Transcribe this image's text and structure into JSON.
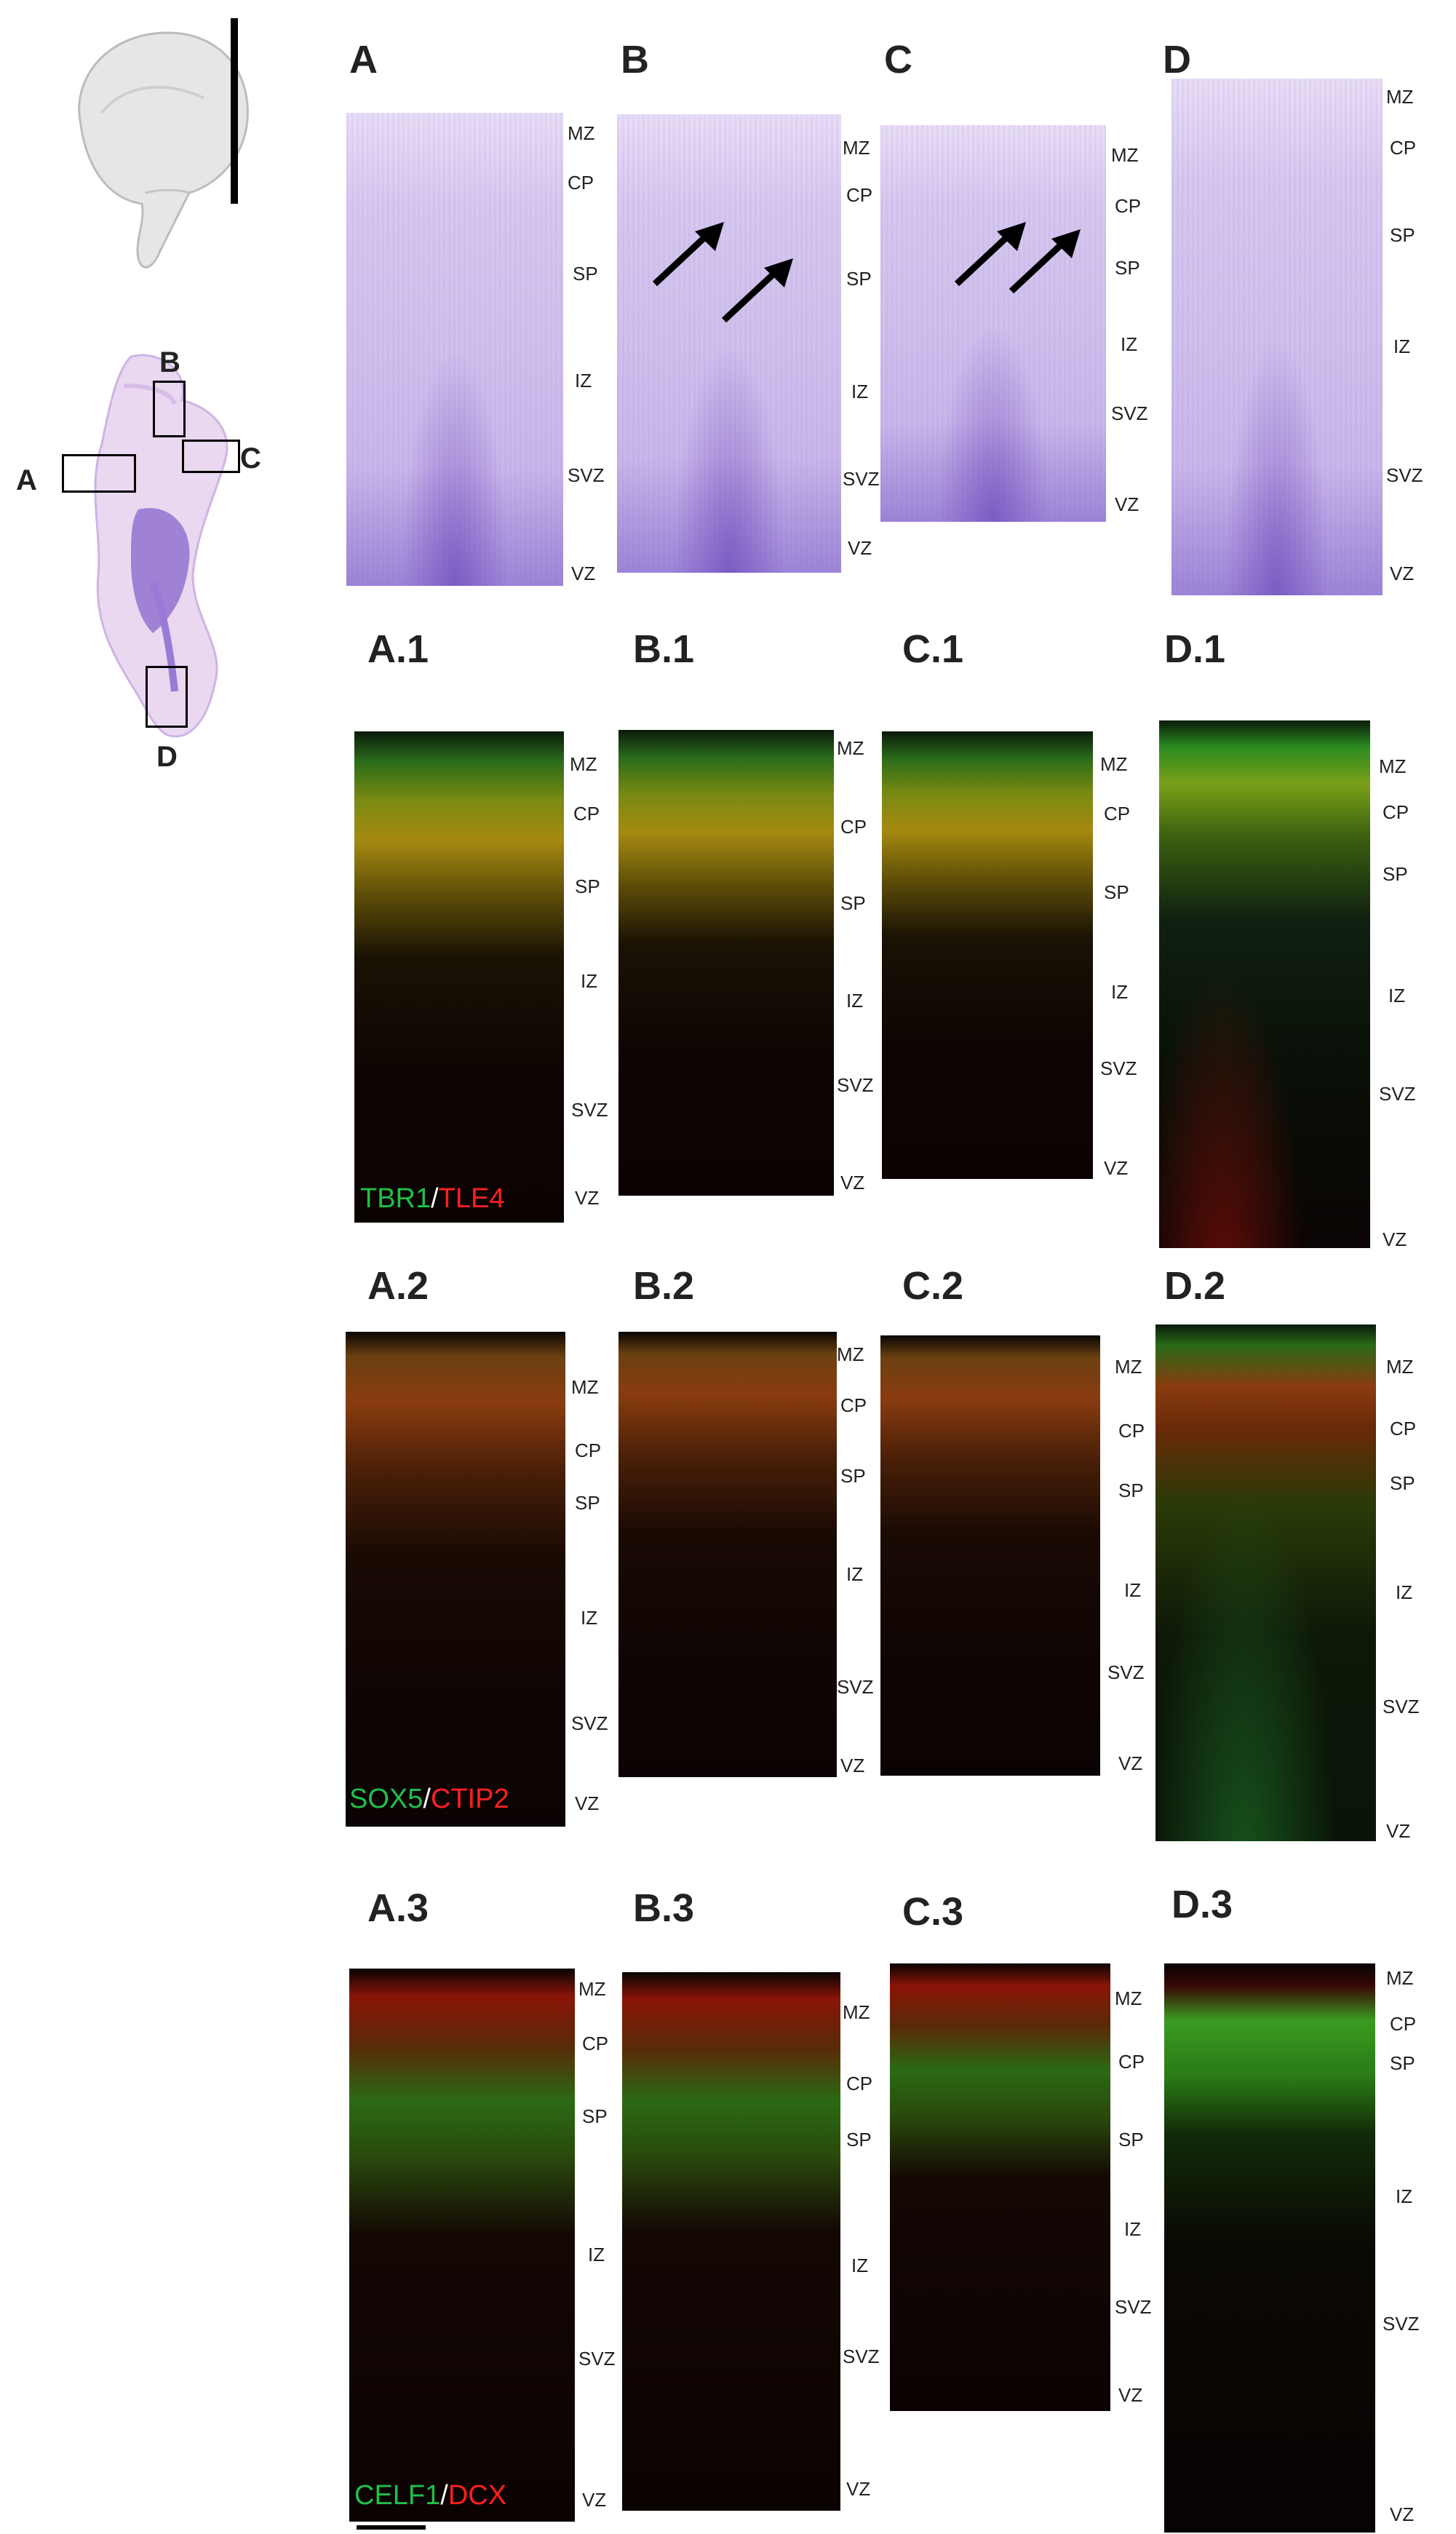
{
  "panels": {
    "A": "A",
    "B": "B",
    "C": "C",
    "D": "D",
    "A1": "A.1",
    "B1": "B.1",
    "C1": "C.1",
    "D1": "D.1",
    "A2": "A.2",
    "B2": "B.2",
    "C2": "C.2",
    "D2": "D.2",
    "A3": "A.3",
    "B3": "B.3",
    "C3": "C.3",
    "D3": "D.3"
  },
  "zones": {
    "MZ": "MZ",
    "CP": "CP",
    "SP": "SP",
    "IZ": "IZ",
    "SVZ": "SVZ",
    "VZ": "VZ"
  },
  "markers": {
    "row1": {
      "green": "TBR1",
      "sep": "/",
      "red": "TLE4"
    },
    "row2": {
      "green": "SOX5",
      "sep": "/",
      "red": "CTIP2"
    },
    "row3": {
      "green": "CELF1",
      "sep": "/",
      "red": "DCX"
    }
  },
  "overview": {
    "A": "A",
    "B": "B",
    "C": "C",
    "D": "D"
  },
  "colors": {
    "nissl": "#c9b6ea",
    "green_marker": "#1fc04a",
    "red_marker": "#ff2020"
  }
}
